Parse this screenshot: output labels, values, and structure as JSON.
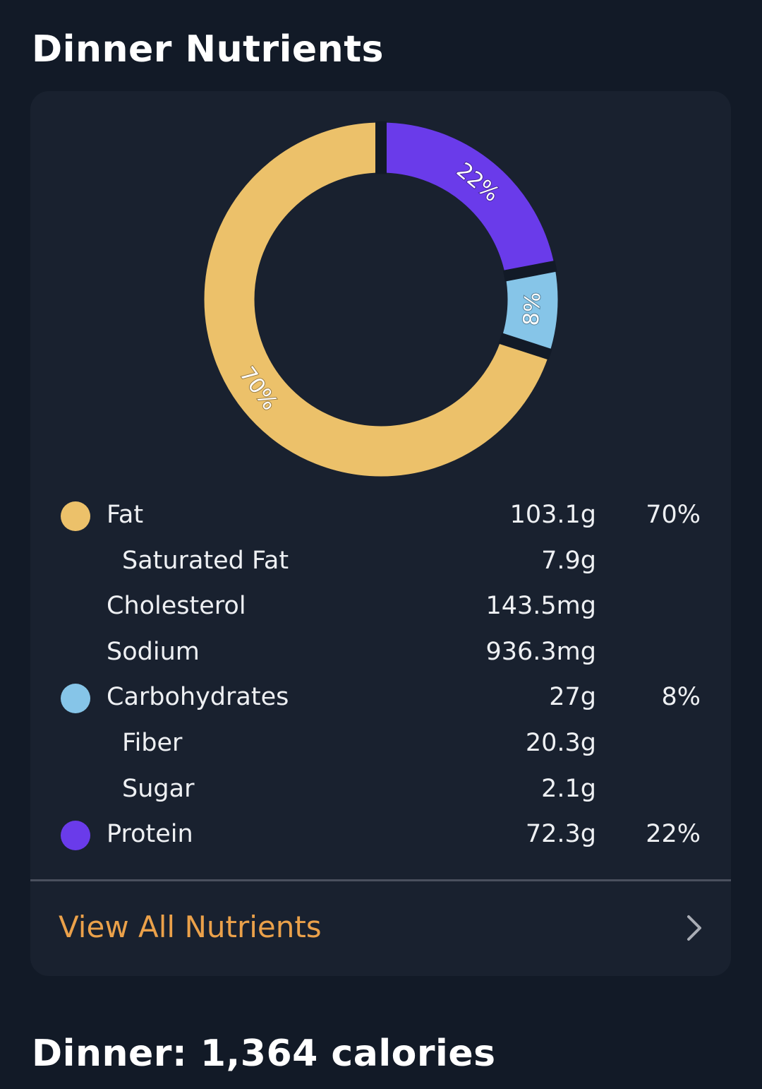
{
  "header": {
    "title": "Dinner Nutrients"
  },
  "colors": {
    "fat": "#ecc16a",
    "carbs": "#86c5e8",
    "protein": "#6a3bea",
    "gap": "#121a27"
  },
  "chart_data": {
    "type": "pie",
    "variant": "donut",
    "start": "top",
    "direction": "clockwise",
    "slices": [
      {
        "name": "Protein",
        "value": 22,
        "label": "22%",
        "color": "#6a3bea"
      },
      {
        "name": "Carbohydrates",
        "value": 8,
        "label": "8%",
        "color": "#86c5e8"
      },
      {
        "name": "Fat",
        "value": 70,
        "label": "70%",
        "color": "#ecc16a"
      }
    ]
  },
  "nutrients": [
    {
      "label": "Fat",
      "amount": "103.1g",
      "percent": "70%",
      "dot": "#ecc16a",
      "sub": false
    },
    {
      "label": "Saturated Fat",
      "amount": "7.9g",
      "sub": true
    },
    {
      "label": "Cholesterol",
      "amount": "143.5mg",
      "sub": false
    },
    {
      "label": "Sodium",
      "amount": "936.3mg",
      "sub": false
    },
    {
      "label": "Carbohydrates",
      "amount": "27g",
      "percent": "8%",
      "dot": "#86c5e8",
      "sub": false
    },
    {
      "label": "Fiber",
      "amount": "20.3g",
      "sub": true
    },
    {
      "label": "Sugar",
      "amount": "2.1g",
      "sub": true
    },
    {
      "label": "Protein",
      "amount": "72.3g",
      "percent": "22%",
      "dot": "#6a3bea",
      "sub": false
    }
  ],
  "footer_link": {
    "label": "View All Nutrients",
    "icon": "chevron-right-icon"
  },
  "summary": {
    "title": "Dinner: 1,364 calories"
  }
}
